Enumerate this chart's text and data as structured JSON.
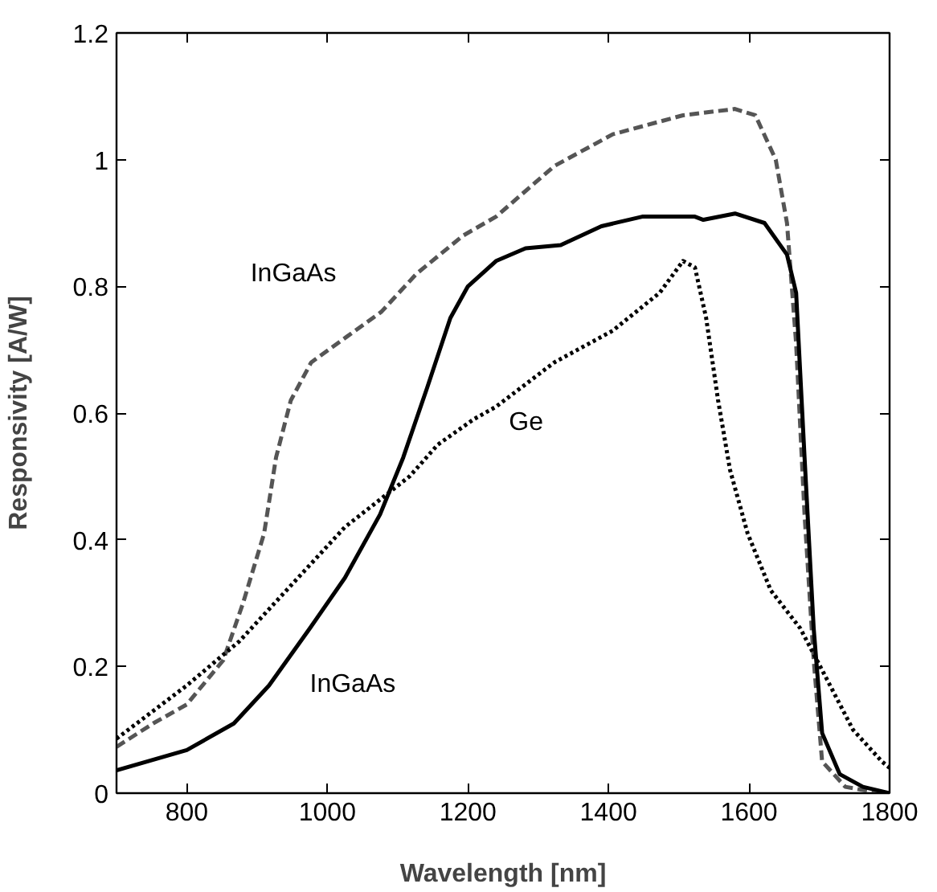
{
  "chart_data": {
    "type": "line",
    "xlabel": "Wavelength [nm]",
    "ylabel": "Responsivity [A/W]",
    "xlim": [
      700,
      1800
    ],
    "ylim": [
      0,
      1.2
    ],
    "xticks": [
      800,
      1000,
      1200,
      1400,
      1600,
      1800
    ],
    "yticks": [
      0,
      0.2,
      0.4,
      0.6,
      0.8,
      1,
      1.2
    ],
    "grid": false,
    "marker": "none",
    "series": [
      {
        "name": "InGaAs",
        "color": "#555555",
        "line_style": "dashed",
        "x": [
          700,
          752,
          800,
          852,
          880,
          910,
          927,
          948,
          977,
          1027,
          1077,
          1127,
          1193,
          1240,
          1323,
          1406,
          1506,
          1580,
          1609,
          1638,
          1654,
          1667,
          1679,
          1692,
          1704,
          1737,
          1787
        ],
        "values": [
          0.073,
          0.11,
          0.14,
          0.21,
          0.3,
          0.41,
          0.53,
          0.62,
          0.68,
          0.72,
          0.76,
          0.82,
          0.88,
          0.91,
          0.99,
          1.04,
          1.07,
          1.08,
          1.07,
          1.0,
          0.9,
          0.71,
          0.44,
          0.21,
          0.05,
          0.01,
          0.0
        ]
      },
      {
        "name": "InGaAs",
        "color": "#000000",
        "line_style": "solid",
        "x": [
          700,
          800,
          867,
          917,
          975,
          1025,
          1075,
          1108,
          1142,
          1175,
          1200,
          1240,
          1282,
          1332,
          1390,
          1448,
          1523,
          1535,
          1580,
          1622,
          1654,
          1667,
          1679,
          1692,
          1704,
          1729,
          1762,
          1800
        ],
        "values": [
          0.036,
          0.068,
          0.11,
          0.17,
          0.26,
          0.34,
          0.44,
          0.53,
          0.64,
          0.75,
          0.8,
          0.84,
          0.86,
          0.865,
          0.895,
          0.91,
          0.91,
          0.905,
          0.915,
          0.9,
          0.85,
          0.79,
          0.53,
          0.26,
          0.095,
          0.03,
          0.01,
          0.0
        ]
      },
      {
        "name": "Ge",
        "color": "#000000",
        "line_style": "dotted",
        "x": [
          700,
          800,
          875,
          950,
          1025,
          1117,
          1157,
          1208,
          1240,
          1323,
          1406,
          1473,
          1506,
          1523,
          1539,
          1556,
          1573,
          1598,
          1631,
          1673,
          1706,
          1748,
          1789,
          1800
        ],
        "values": [
          0.086,
          0.17,
          0.24,
          0.33,
          0.42,
          0.5,
          0.55,
          0.59,
          0.61,
          0.68,
          0.73,
          0.79,
          0.84,
          0.83,
          0.75,
          0.62,
          0.51,
          0.41,
          0.32,
          0.26,
          0.19,
          0.1,
          0.05,
          0.04
        ]
      }
    ]
  }
}
